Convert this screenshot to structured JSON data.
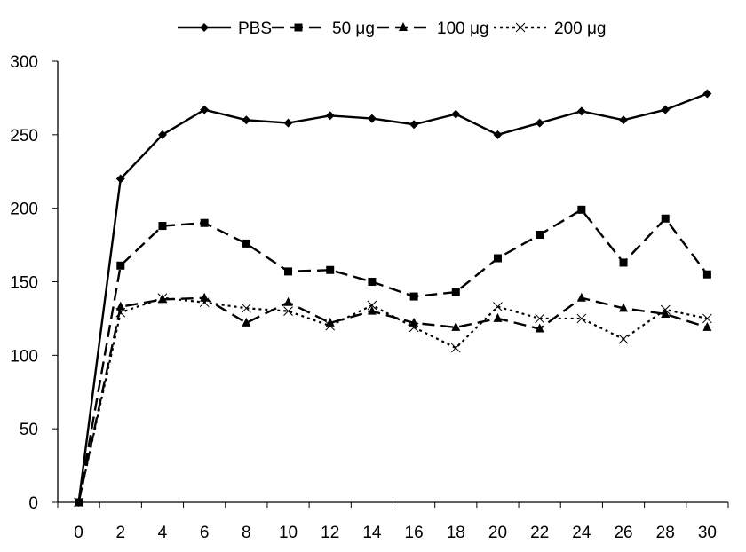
{
  "chart_data": {
    "type": "line",
    "title": "",
    "xlabel": "",
    "ylabel": "",
    "x": [
      0,
      2,
      4,
      6,
      8,
      10,
      12,
      14,
      16,
      18,
      20,
      22,
      24,
      26,
      28,
      30
    ],
    "xlim": [
      -1,
      31
    ],
    "ylim": [
      0,
      300
    ],
    "yticks": [
      0,
      50,
      100,
      150,
      200,
      250,
      300
    ],
    "grid": false,
    "legend_position": "top",
    "series": [
      {
        "name": "PBS",
        "marker": "diamond",
        "dash": "solid",
        "values": [
          0,
          220,
          250,
          267,
          260,
          258,
          263,
          261,
          257,
          264,
          250,
          258,
          266,
          260,
          267,
          278
        ]
      },
      {
        "name": "50 μg",
        "marker": "square",
        "dash": "dashed",
        "values": [
          0,
          161,
          188,
          190,
          176,
          157,
          158,
          150,
          140,
          143,
          166,
          182,
          199,
          163,
          193,
          155
        ]
      },
      {
        "name": "100 μg",
        "marker": "triangle",
        "dash": "dashed",
        "values": [
          0,
          133,
          138,
          139,
          122,
          136,
          122,
          130,
          122,
          119,
          125,
          118,
          139,
          132,
          128,
          119
        ]
      },
      {
        "name": "200 μg",
        "marker": "x",
        "dash": "dotted",
        "values": [
          0,
          129,
          139,
          136,
          132,
          130,
          120,
          134,
          119,
          105,
          133,
          125,
          125,
          111,
          131,
          125
        ]
      }
    ],
    "color": "#000000"
  }
}
